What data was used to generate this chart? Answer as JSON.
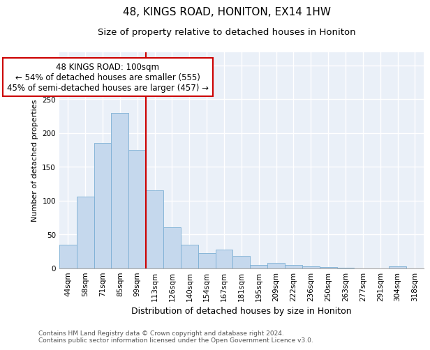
{
  "title": "48, KINGS ROAD, HONITON, EX14 1HW",
  "subtitle": "Size of property relative to detached houses in Honiton",
  "xlabel": "Distribution of detached houses by size in Honiton",
  "ylabel": "Number of detached properties",
  "categories": [
    "44sqm",
    "58sqm",
    "71sqm",
    "85sqm",
    "99sqm",
    "113sqm",
    "126sqm",
    "140sqm",
    "154sqm",
    "167sqm",
    "181sqm",
    "195sqm",
    "209sqm",
    "222sqm",
    "236sqm",
    "250sqm",
    "263sqm",
    "277sqm",
    "291sqm",
    "304sqm",
    "318sqm"
  ],
  "values": [
    35,
    106,
    185,
    230,
    175,
    115,
    60,
    35,
    22,
    27,
    18,
    5,
    8,
    5,
    3,
    2,
    1,
    0,
    0,
    3,
    0
  ],
  "bar_color": "#c5d8ed",
  "bar_edge_color": "#7bafd4",
  "vline_x": 4.5,
  "vline_color": "#cc0000",
  "annotation_box_text": "48 KINGS ROAD: 100sqm\n← 54% of detached houses are smaller (555)\n45% of semi-detached houses are larger (457) →",
  "ylim": [
    0,
    320
  ],
  "yticks": [
    0,
    50,
    100,
    150,
    200,
    250,
    300
  ],
  "background_color": "#eaf0f8",
  "grid_color": "#ffffff",
  "footer_line1": "Contains HM Land Registry data © Crown copyright and database right 2024.",
  "footer_line2": "Contains public sector information licensed under the Open Government Licence v3.0.",
  "title_fontsize": 11,
  "subtitle_fontsize": 9.5,
  "xlabel_fontsize": 9,
  "ylabel_fontsize": 8,
  "tick_fontsize": 7.5,
  "annotation_fontsize": 8.5,
  "footer_fontsize": 6.5
}
